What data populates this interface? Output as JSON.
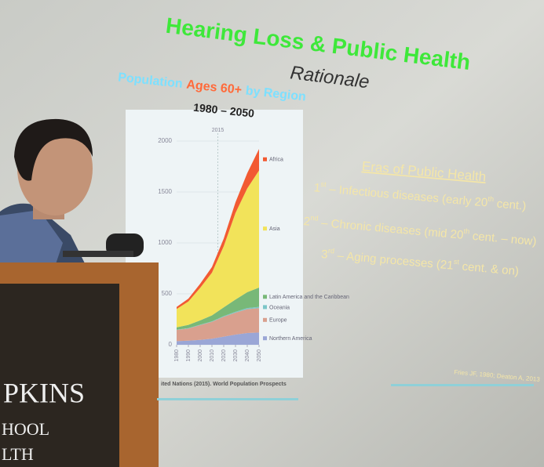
{
  "slide": {
    "title": "Hearing Loss & Public Health",
    "subtitle": "Rationale",
    "eras_heading": "Eras of Public Health",
    "eras": [
      [
        {
          "t": "1"
        },
        {
          "t": "st",
          "sup": true
        },
        {
          "t": " – Infectious diseases (early 20"
        },
        {
          "t": "th",
          "sup": true
        },
        {
          "t": " cent.)"
        }
      ],
      [
        {
          "t": "2"
        },
        {
          "t": "nd",
          "sup": true
        },
        {
          "t": " – Chronic diseases (mid 20"
        },
        {
          "t": "th",
          "sup": true
        },
        {
          "t": " cent. – now)"
        }
      ],
      [
        {
          "t": "3"
        },
        {
          "t": "rd",
          "sup": true
        },
        {
          "t": " – Aging processes (21"
        },
        {
          "t": "st",
          "sup": true
        },
        {
          "t": " cent. & on)"
        }
      ]
    ],
    "citation": "Fries JF, 1980; Deaton A, 2013"
  },
  "chart_data": {
    "type": "area",
    "stacked": true,
    "title_parts": [
      {
        "text": "Population",
        "color": "#7de0ff"
      },
      {
        "text": "Ages 60+",
        "color": "#ff6a3a"
      },
      {
        "text": "by Region",
        "color": "#7de0ff"
      }
    ],
    "subtitle": "1980 – 2050",
    "source": "ited Nations (2015). World Population Prospects",
    "x": [
      1980,
      1990,
      2000,
      2010,
      2020,
      2030,
      2040,
      2050
    ],
    "xlim": [
      1980,
      2050
    ],
    "xticks": [
      1980,
      1990,
      2000,
      2010,
      2020,
      2030,
      2040,
      2050
    ],
    "ylim": [
      0,
      2000
    ],
    "yticks": [
      0,
      500,
      1000,
      1500,
      2000
    ],
    "marker": 2015,
    "series": [
      {
        "name": "Northern America",
        "color": "#9aa6d6",
        "values": [
          36,
          40,
          48,
          60,
          80,
          100,
          115,
          120
        ]
      },
      {
        "name": "Europe",
        "color": "#d9a08e",
        "values": [
          110,
          120,
          145,
          165,
          195,
          215,
          235,
          240
        ]
      },
      {
        "name": "Oceania",
        "color": "#7cc6c8",
        "values": [
          2,
          3,
          4,
          5,
          7,
          9,
          11,
          12
        ]
      },
      {
        "name": "Latin America and the Caribbean",
        "color": "#78b878",
        "values": [
          23,
          32,
          42,
          58,
          85,
          120,
          155,
          190
        ]
      },
      {
        "name": "Asia",
        "color": "#f2e35a",
        "values": [
          180,
          230,
          320,
          420,
          600,
          850,
          1020,
          1150
        ]
      },
      {
        "name": "Africa",
        "color": "#f25a32",
        "values": [
          20,
          28,
          40,
          55,
          75,
          105,
          150,
          210
        ]
      }
    ]
  },
  "sign": {
    "lines": [
      "PKINS",
      "HOOL",
      "LTH"
    ]
  }
}
